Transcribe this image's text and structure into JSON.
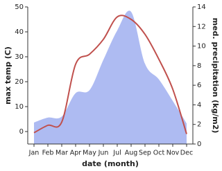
{
  "chart_data": {
    "type": "area-line",
    "xlabel": "date (month)",
    "ylabel": "max temp (C)",
    "y2label": "med. precipitation (kg/m2)",
    "categories": [
      "Jan",
      "Feb",
      "Mar",
      "Apr",
      "May",
      "Jun",
      "Jul",
      "Aug",
      "Sep",
      "Oct",
      "Nov",
      "Dec"
    ],
    "series": [
      {
        "color": "#aebbf2",
        "axis": "y2",
        "values": [
          2.2,
          2.7,
          2.8,
          5.2,
          5.5,
          8.6,
          11.6,
          13.5,
          8.2,
          6.6,
          4.4,
          2.1
        ]
      },
      {
        "color": "#c0504d",
        "values": [
          -0.5,
          2.5,
          3.8,
          27,
          31,
          37,
          46,
          45,
          39,
          29,
          17,
          -1
        ]
      }
    ],
    "ylim": [
      -5,
      50
    ],
    "yticks": [
      0,
      10,
      20,
      30,
      40,
      50
    ],
    "y2lim": [
      0,
      14
    ],
    "y2ticks": [
      0,
      2,
      4,
      6,
      8,
      10,
      12,
      14
    ]
  }
}
